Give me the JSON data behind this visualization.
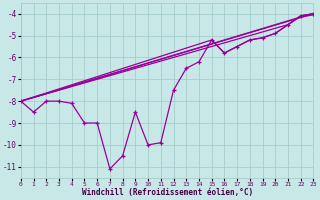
{
  "background_color": "#c8e8e8",
  "grid_color": "#a0c8c8",
  "line_color": "#990099",
  "xlabel": "Windchill (Refroidissement éolien,°C)",
  "xlim": [
    0,
    23
  ],
  "ylim": [
    -11.5,
    -3.5
  ],
  "yticks": [
    -11,
    -10,
    -9,
    -8,
    -7,
    -6,
    -5,
    -4
  ],
  "xticks": [
    0,
    1,
    2,
    3,
    4,
    5,
    6,
    7,
    8,
    9,
    10,
    11,
    12,
    13,
    14,
    15,
    16,
    17,
    18,
    19,
    20,
    21,
    22,
    23
  ],
  "lines": [
    {
      "x": [
        0,
        1,
        2,
        3,
        4,
        5,
        6,
        7,
        8,
        9,
        10,
        11,
        12,
        13,
        14,
        15,
        16,
        17,
        18,
        19,
        20,
        21,
        22,
        23
      ],
      "y": [
        -8.0,
        -8.5,
        -8.0,
        -8.0,
        -8.1,
        -9.0,
        -9.0,
        -11.1,
        -10.5,
        -8.5,
        -10.0,
        -9.9,
        -7.5,
        -6.5,
        -6.2,
        -5.2,
        -5.8,
        -5.5,
        -5.2,
        -5.1,
        -4.9,
        -4.5,
        -4.1,
        -4.0
      ],
      "marker": true,
      "lw": 0.9
    },
    {
      "x": [
        0,
        23
      ],
      "y": [
        -8.0,
        -4.0
      ],
      "marker": false,
      "lw": 0.9
    },
    {
      "x": [
        0,
        22,
        23
      ],
      "y": [
        -8.0,
        -4.15,
        -4.05
      ],
      "marker": false,
      "lw": 0.9
    },
    {
      "x": [
        0,
        21,
        22,
        23
      ],
      "y": [
        -8.0,
        -4.5,
        -4.1,
        -4.0
      ],
      "marker": false,
      "lw": 0.9
    },
    {
      "x": [
        0,
        15,
        16,
        17,
        18,
        19,
        20,
        21,
        22,
        23
      ],
      "y": [
        -8.0,
        -5.2,
        -5.8,
        -5.5,
        -5.2,
        -5.1,
        -4.9,
        -4.5,
        -4.1,
        -4.0
      ],
      "marker": false,
      "lw": 0.9
    }
  ]
}
